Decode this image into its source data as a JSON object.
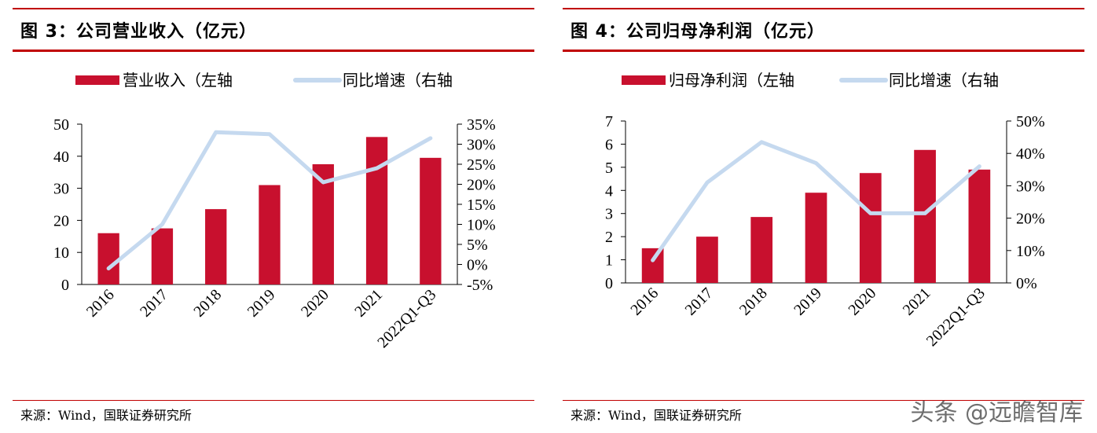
{
  "watermark": "头条 @远瞻智库",
  "colors": {
    "bar": "#c8102e",
    "line": "#c5d9ef",
    "rule": "#c00000"
  },
  "charts": [
    {
      "title": "图 3：公司营业收入（亿元）",
      "source": "来源：Wind，国联证券研究所",
      "legend": {
        "bar": "营业收入（左轴",
        "line": "同比增速（右轴"
      },
      "left_ticks": [
        "50",
        "40",
        "30",
        "20",
        "10",
        "0"
      ],
      "right_ticks": [
        "35%",
        "30%",
        "25%",
        "20%",
        "15%",
        "10%",
        "5%",
        "0%",
        "-5%"
      ]
    },
    {
      "title": "图 4：公司归母净利润（亿元）",
      "source": "来源：Wind，国联证券研究所",
      "legend": {
        "bar": "归母净利润（左轴",
        "line": "同比增速（右轴"
      },
      "left_ticks": [
        "7",
        "6",
        "5",
        "4",
        "3",
        "2",
        "1",
        "0"
      ],
      "right_ticks": [
        "50%",
        "40%",
        "30%",
        "20%",
        "10%",
        "0%"
      ]
    }
  ],
  "chart_data": [
    {
      "type": "bar",
      "title": "图 3：公司营业收入（亿元）",
      "categories": [
        "2016",
        "2017",
        "2018",
        "2019",
        "2020",
        "2021",
        "2022Q1-Q3"
      ],
      "series": [
        {
          "name": "营业收入（左轴",
          "axis": "left",
          "kind": "bar",
          "values": [
            16,
            17.5,
            23.5,
            31,
            37.5,
            46,
            39.5
          ]
        },
        {
          "name": "同比增速（右轴",
          "axis": "right",
          "kind": "line",
          "values": [
            -1,
            10,
            33,
            32.5,
            20.5,
            24,
            31.5
          ]
        }
      ],
      "ylim_left": [
        0,
        50
      ],
      "ylim_right": [
        -5,
        35
      ],
      "right_unit": "%",
      "legend_position": "top"
    },
    {
      "type": "bar",
      "title": "图 4：公司归母净利润（亿元）",
      "categories": [
        "2016",
        "2017",
        "2018",
        "2019",
        "2020",
        "2021",
        "2022Q1-Q3"
      ],
      "series": [
        {
          "name": "归母净利润（左轴",
          "axis": "left",
          "kind": "bar",
          "values": [
            1.5,
            2.0,
            2.85,
            3.9,
            4.75,
            5.75,
            4.9
          ]
        },
        {
          "name": "同比增速（右轴",
          "axis": "right",
          "kind": "line",
          "values": [
            7,
            31,
            43.5,
            37,
            21.5,
            21.5,
            36
          ]
        }
      ],
      "ylim_left": [
        0,
        7
      ],
      "ylim_right": [
        0,
        50
      ],
      "right_unit": "%",
      "legend_position": "top"
    }
  ]
}
